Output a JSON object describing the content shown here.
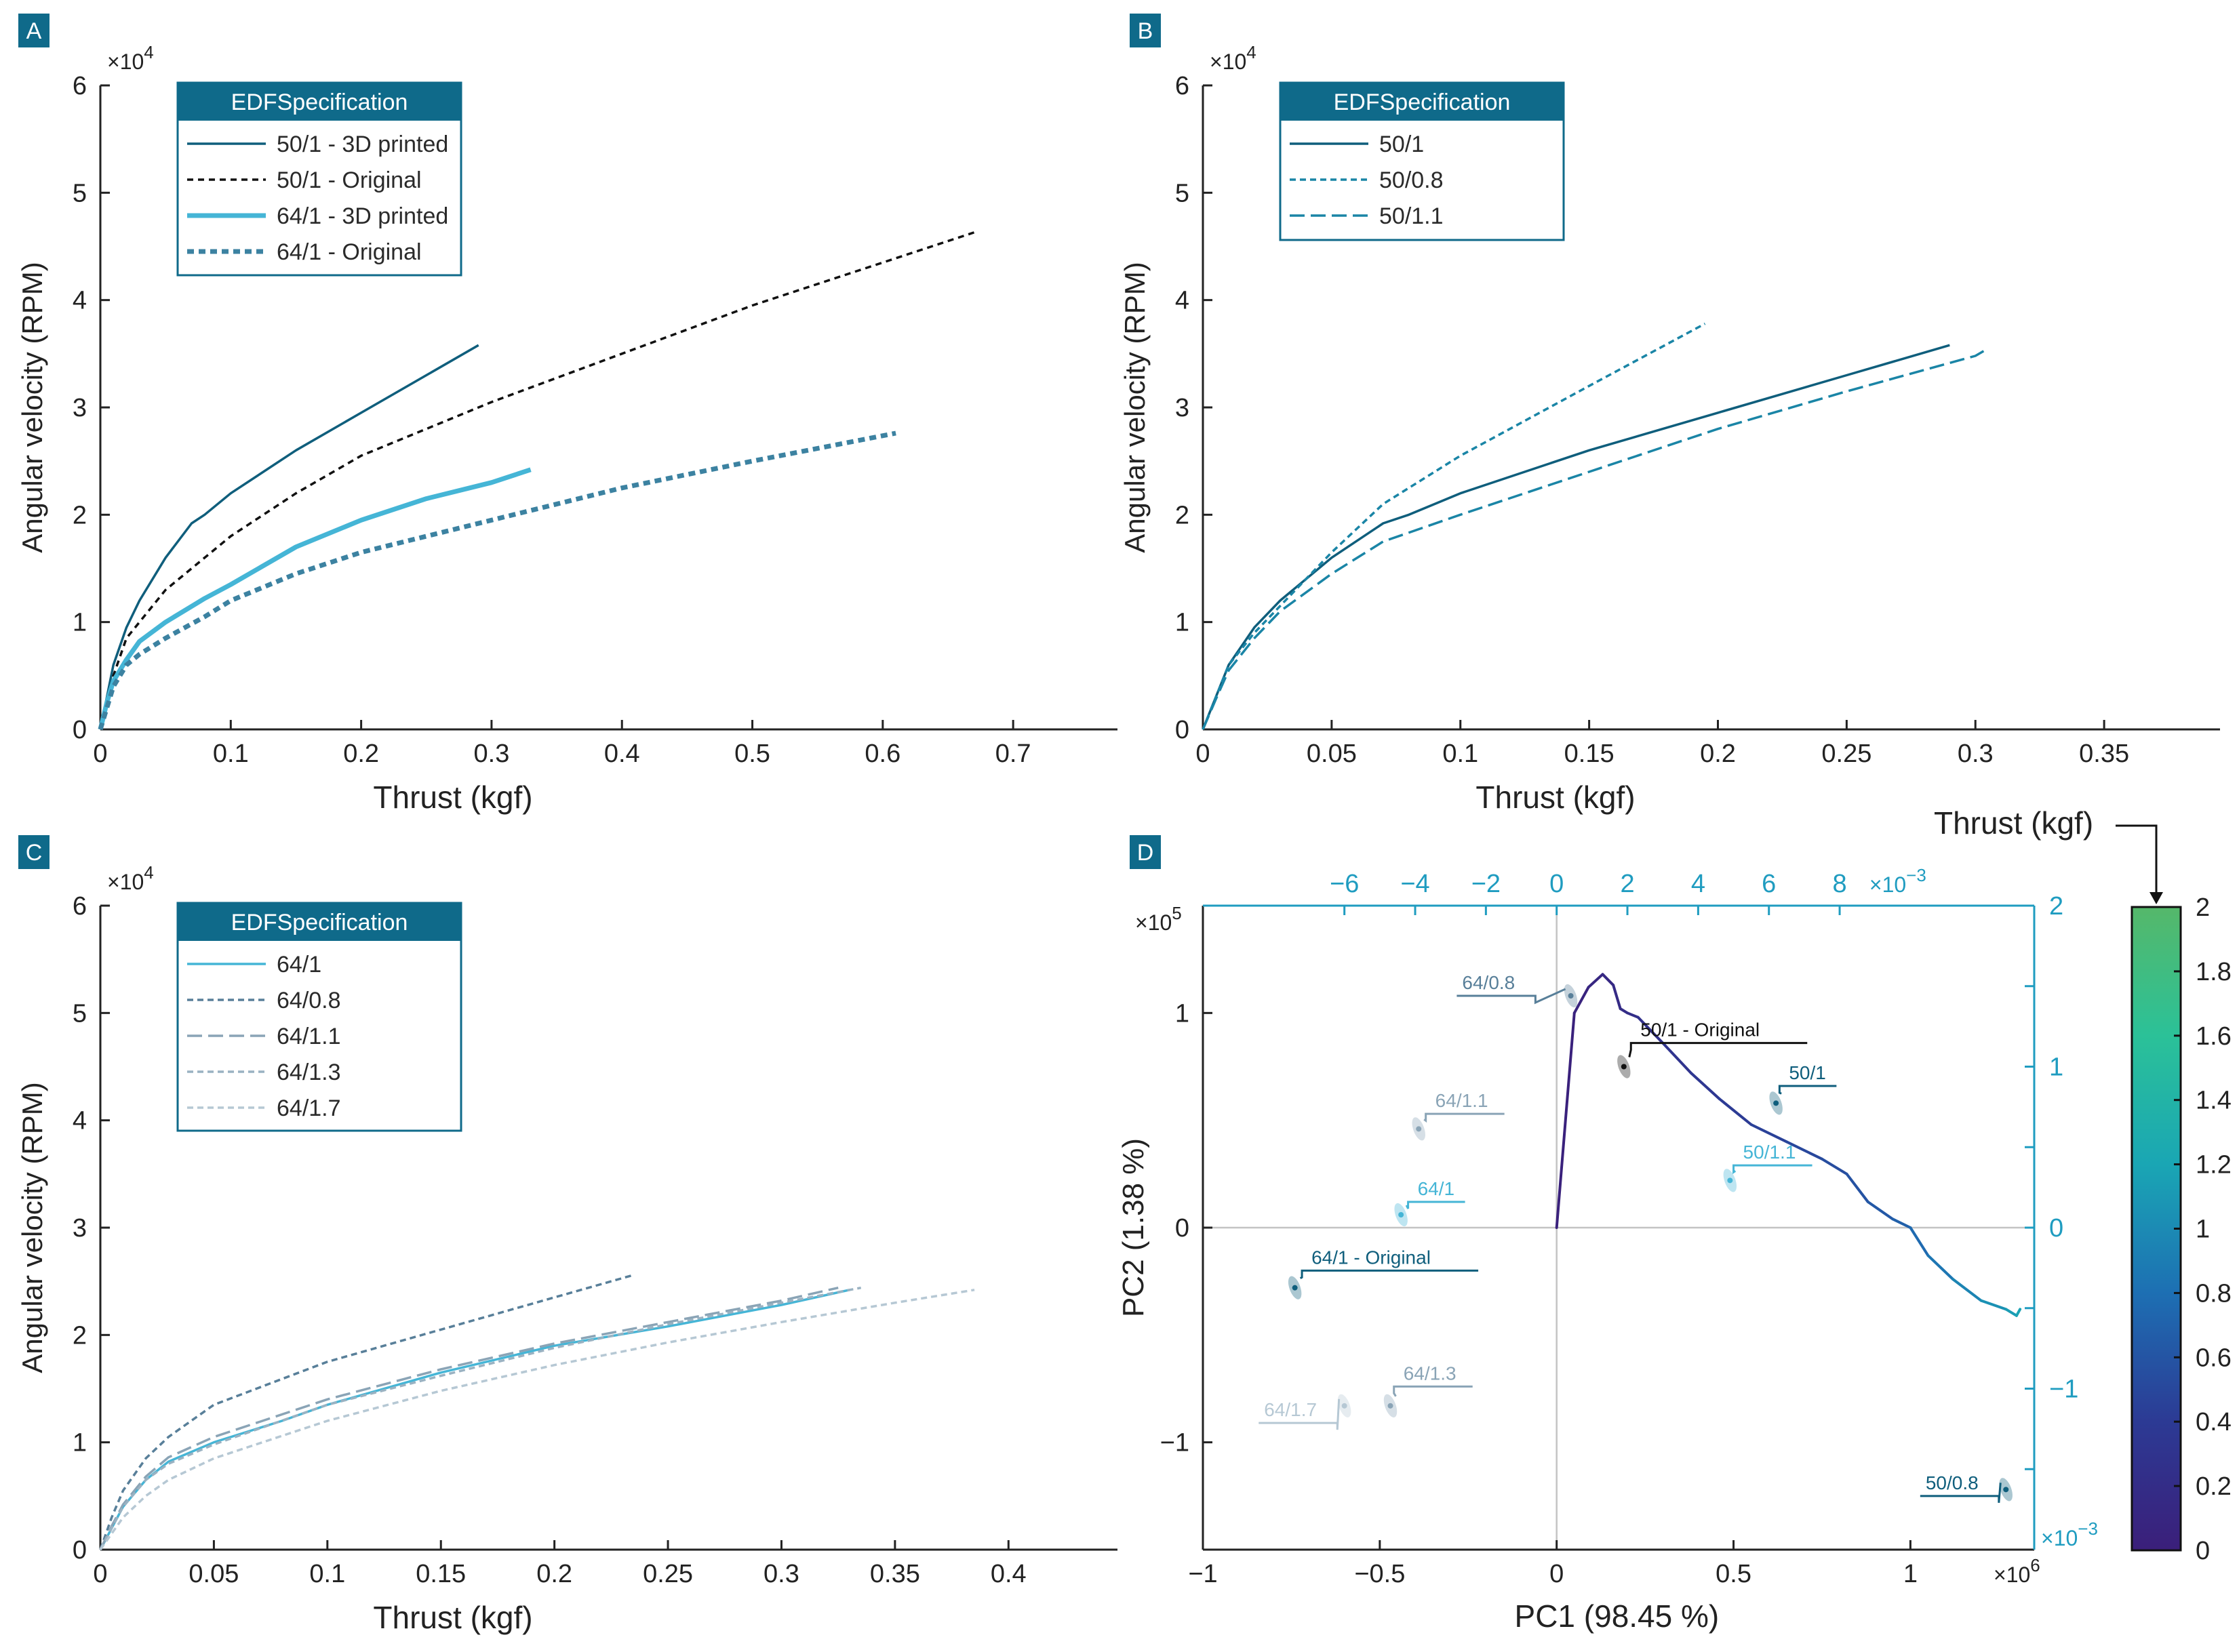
{
  "colors": {
    "navy": "#0f5e7c",
    "black": "#111111",
    "cyan": "#45b5d6",
    "teal": "#3c82a1",
    "mid": "#1a85a6",
    "panel_tag": "#0f6a8a",
    "slate": "#587f99",
    "gray1": "#8aa4b6",
    "gray2": "#9ab2c2",
    "gray3": "#b6c8d4",
    "axis": "#222222",
    "accent_axis": "#1f9cc0"
  },
  "chart_data": [
    {
      "panel": "A",
      "type": "line",
      "xlabel": "Thrust (kgf)",
      "ylabel": "Angular velocity (RPM)",
      "y_multiplier": "×10",
      "y_multiplier_exp": "4",
      "xlim": [
        0,
        0.78
      ],
      "ylim": [
        0,
        6
      ],
      "xticks": [
        0,
        0.1,
        0.2,
        0.3,
        0.4,
        0.5,
        0.6,
        0.7
      ],
      "xtick_labels": [
        "0",
        "0.1",
        "0.2",
        "0.3",
        "0.4",
        "0.5",
        "0.6",
        "0.7"
      ],
      "yticks": [
        0,
        1,
        2,
        3,
        4,
        5,
        6
      ],
      "ytick_labels": [
        "0",
        "1",
        "2",
        "3",
        "4",
        "5",
        "6"
      ],
      "legend_title": "EDFSpecification",
      "series": [
        {
          "name": "50/1 - 3D printed",
          "color": "navy",
          "dash": "",
          "width": 3.5,
          "x": [
            0,
            0.005,
            0.01,
            0.02,
            0.03,
            0.05,
            0.07,
            0.08,
            0.1,
            0.15,
            0.2,
            0.25,
            0.29
          ],
          "y": [
            0,
            0.3,
            0.6,
            0.95,
            1.2,
            1.6,
            1.92,
            2.0,
            2.2,
            2.6,
            2.95,
            3.3,
            3.58
          ]
        },
        {
          "name": "50/1 - Original",
          "color": "black",
          "dash": "9,7",
          "width": 3.5,
          "x": [
            0,
            0.01,
            0.02,
            0.05,
            0.1,
            0.15,
            0.2,
            0.3,
            0.4,
            0.5,
            0.6,
            0.67
          ],
          "y": [
            0,
            0.5,
            0.85,
            1.3,
            1.8,
            2.2,
            2.55,
            3.05,
            3.5,
            3.95,
            4.35,
            4.63
          ]
        },
        {
          "name": "64/1 - 3D printed",
          "color": "cyan",
          "dash": "",
          "width": 7,
          "x": [
            0,
            0.005,
            0.01,
            0.02,
            0.03,
            0.05,
            0.08,
            0.1,
            0.15,
            0.2,
            0.25,
            0.3,
            0.33
          ],
          "y": [
            0,
            0.25,
            0.45,
            0.65,
            0.82,
            1.0,
            1.22,
            1.35,
            1.7,
            1.95,
            2.15,
            2.3,
            2.42
          ]
        },
        {
          "name": "64/1 - Original",
          "color": "teal",
          "dash": "10,7",
          "width": 7,
          "x": [
            0,
            0.005,
            0.01,
            0.02,
            0.03,
            0.05,
            0.08,
            0.1,
            0.15,
            0.2,
            0.3,
            0.4,
            0.5,
            0.61
          ],
          "y": [
            0,
            0.2,
            0.4,
            0.6,
            0.7,
            0.85,
            1.05,
            1.2,
            1.45,
            1.65,
            1.95,
            2.25,
            2.5,
            2.76
          ]
        }
      ]
    },
    {
      "panel": "B",
      "type": "line",
      "xlabel": "Thrust (kgf)",
      "ylabel": "Angular velocity (RPM)",
      "y_multiplier": "×10",
      "y_multiplier_exp": "4",
      "xlim": [
        0,
        0.395
      ],
      "ylim": [
        0,
        6
      ],
      "xticks": [
        0,
        0.05,
        0.1,
        0.15,
        0.2,
        0.25,
        0.3,
        0.35
      ],
      "xtick_labels": [
        "0",
        "0.05",
        "0.1",
        "0.15",
        "0.2",
        "0.25",
        "0.3",
        "0.35"
      ],
      "yticks": [
        0,
        1,
        2,
        3,
        4,
        5,
        6
      ],
      "ytick_labels": [
        "0",
        "1",
        "2",
        "3",
        "4",
        "5",
        "6"
      ],
      "legend_title": "EDFSpecification",
      "series": [
        {
          "name": "50/1",
          "color": "navy",
          "dash": "",
          "width": 3.5,
          "x": [
            0,
            0.005,
            0.01,
            0.02,
            0.03,
            0.05,
            0.07,
            0.08,
            0.1,
            0.15,
            0.2,
            0.25,
            0.29
          ],
          "y": [
            0,
            0.3,
            0.6,
            0.95,
            1.2,
            1.6,
            1.92,
            2.0,
            2.2,
            2.6,
            2.95,
            3.3,
            3.58
          ]
        },
        {
          "name": "50/0.8",
          "color": "mid",
          "dash": "9,6",
          "width": 3.5,
          "x": [
            0,
            0.005,
            0.01,
            0.02,
            0.03,
            0.05,
            0.07,
            0.1,
            0.15,
            0.195
          ],
          "y": [
            0,
            0.3,
            0.6,
            0.9,
            1.15,
            1.65,
            2.1,
            2.55,
            3.2,
            3.78
          ]
        },
        {
          "name": "50/1.1",
          "color": "mid",
          "dash": "22,9",
          "width": 3.5,
          "x": [
            0,
            0.005,
            0.01,
            0.02,
            0.03,
            0.05,
            0.07,
            0.1,
            0.15,
            0.2,
            0.25,
            0.3,
            0.305
          ],
          "y": [
            0,
            0.28,
            0.55,
            0.85,
            1.1,
            1.45,
            1.75,
            2.0,
            2.4,
            2.8,
            3.15,
            3.48,
            3.55
          ]
        }
      ]
    },
    {
      "panel": "C",
      "type": "line",
      "xlabel": "Thrust (kgf)",
      "ylabel": "Angular velocity (RPM)",
      "y_multiplier": "×10",
      "y_multiplier_exp": "4",
      "xlim": [
        0,
        0.448
      ],
      "ylim": [
        0,
        6
      ],
      "xticks": [
        0,
        0.05,
        0.1,
        0.15,
        0.2,
        0.25,
        0.3,
        0.35,
        0.4
      ],
      "xtick_labels": [
        "0",
        "0.05",
        "0.1",
        "0.15",
        "0.2",
        "0.25",
        "0.3",
        "0.35",
        "0.4"
      ],
      "yticks": [
        0,
        1,
        2,
        3,
        4,
        5,
        6
      ],
      "ytick_labels": [
        "0",
        "1",
        "2",
        "3",
        "4",
        "5",
        "6"
      ],
      "legend_title": "EDFSpecification",
      "series": [
        {
          "name": "64/1",
          "color": "cyan",
          "dash": "",
          "width": 3.5,
          "x": [
            0,
            0.005,
            0.01,
            0.02,
            0.03,
            0.05,
            0.08,
            0.1,
            0.15,
            0.2,
            0.25,
            0.3,
            0.33
          ],
          "y": [
            0,
            0.2,
            0.4,
            0.65,
            0.82,
            1.0,
            1.2,
            1.35,
            1.65,
            1.9,
            2.08,
            2.28,
            2.42
          ]
        },
        {
          "name": "64/0.8",
          "color": "slate",
          "dash": "9,6",
          "width": 3.5,
          "x": [
            0,
            0.005,
            0.01,
            0.02,
            0.03,
            0.05,
            0.1,
            0.15,
            0.2,
            0.235
          ],
          "y": [
            0,
            0.3,
            0.55,
            0.85,
            1.05,
            1.35,
            1.75,
            2.05,
            2.35,
            2.56
          ]
        },
        {
          "name": "64/1.1",
          "color": "gray1",
          "dash": "22,9",
          "width": 3.5,
          "x": [
            0,
            0.005,
            0.01,
            0.02,
            0.03,
            0.05,
            0.1,
            0.15,
            0.2,
            0.25,
            0.3,
            0.325
          ],
          "y": [
            0,
            0.22,
            0.42,
            0.68,
            0.86,
            1.05,
            1.4,
            1.68,
            1.92,
            2.12,
            2.32,
            2.44
          ]
        },
        {
          "name": "64/1.3",
          "color": "gray2",
          "dash": "9,6",
          "width": 3.5,
          "x": [
            0,
            0.005,
            0.01,
            0.02,
            0.03,
            0.05,
            0.1,
            0.15,
            0.2,
            0.25,
            0.3,
            0.335
          ],
          "y": [
            0,
            0.2,
            0.4,
            0.65,
            0.8,
            0.98,
            1.35,
            1.62,
            1.88,
            2.1,
            2.3,
            2.44
          ]
        },
        {
          "name": "64/1.7",
          "color": "gray3",
          "dash": "9,6",
          "width": 3.5,
          "x": [
            0,
            0.005,
            0.01,
            0.02,
            0.03,
            0.05,
            0.1,
            0.15,
            0.2,
            0.25,
            0.3,
            0.35,
            0.385
          ],
          "y": [
            0,
            0.15,
            0.3,
            0.5,
            0.65,
            0.85,
            1.2,
            1.48,
            1.72,
            1.93,
            2.12,
            2.3,
            2.42
          ]
        }
      ]
    },
    {
      "panel": "D",
      "type": "scatter",
      "xlabel": "PC1 (98.45 %)",
      "ylabel": "PC2 (1.38 %)",
      "x_multiplier": "×10",
      "x_multiplier_exp": "6",
      "y_multiplier": "×10",
      "y_multiplier_exp": "5",
      "xlim": [
        -1,
        1.35
      ],
      "ylim": [
        -1.5,
        1.5
      ],
      "xticks": [
        -1,
        -0.5,
        0,
        0.5,
        1
      ],
      "xtick_labels": [
        "−1",
        "−0.5",
        "0",
        "0.5",
        "1"
      ],
      "yticks": [
        -1,
        0,
        1
      ],
      "ytick_labels": [
        "−1",
        "0",
        "1"
      ],
      "top_axis": {
        "multiplier": "×10",
        "multiplier_exp": "−3",
        "ticks": [
          -6,
          -4,
          -2,
          0,
          2,
          4,
          6,
          8
        ],
        "tick_labels": [
          "−6",
          "−4",
          "−2",
          "0",
          "2",
          "4",
          "6",
          "8"
        ],
        "scale_per_data_unit": 0.1
      },
      "right_axis": {
        "multiplier": "×10",
        "multiplier_exp": "−3",
        "ticks": [
          -1,
          0,
          1,
          2
        ],
        "tick_labels": [
          "−1",
          "0",
          "1",
          "2"
        ],
        "minor_ticks": [
          -1.5,
          -0.5,
          0.5,
          1.5
        ],
        "scale_per_data_unit": 0.75
      },
      "clusters": [
        {
          "name": "64/0.8",
          "color": "slate",
          "x": 0.04,
          "y": 1.08,
          "lx": -0.06,
          "ly": 1.08,
          "label_side": "left"
        },
        {
          "name": "50/1 - Original",
          "color": "black",
          "x": 0.19,
          "y": 0.75,
          "lx": 0.21,
          "ly": 0.86,
          "label_side": "right"
        },
        {
          "name": "50/1",
          "color": "navy",
          "x": 0.62,
          "y": 0.58,
          "lx": 0.63,
          "ly": 0.66,
          "label_side": "right"
        },
        {
          "name": "64/1.1",
          "color": "gray1",
          "x": -0.39,
          "y": 0.46,
          "lx": -0.37,
          "ly": 0.53,
          "label_side": "right"
        },
        {
          "name": "50/1.1",
          "color": "cyan",
          "x": 0.49,
          "y": 0.22,
          "lx": 0.5,
          "ly": 0.29,
          "label_side": "right"
        },
        {
          "name": "64/1",
          "color": "cyan",
          "x": -0.44,
          "y": 0.06,
          "lx": -0.42,
          "ly": 0.12,
          "label_side": "right"
        },
        {
          "name": "64/1 - Original",
          "color": "navy",
          "x": -0.74,
          "y": -0.28,
          "lx": -0.72,
          "ly": -0.2,
          "label_side": "right"
        },
        {
          "name": "64/1.3",
          "color": "gray1",
          "x": -0.47,
          "y": -0.83,
          "lx": -0.46,
          "ly": -0.74,
          "label_side": "right"
        },
        {
          "name": "64/1.7",
          "color": "gray3",
          "x": -0.6,
          "y": -0.83,
          "lx": -0.62,
          "ly": -0.91,
          "label_side": "left"
        },
        {
          "name": "50/0.8",
          "color": "navy",
          "x": 1.27,
          "y": -1.22,
          "lx": 1.25,
          "ly": -1.25,
          "label_side": "left"
        }
      ],
      "trajectory": {
        "color_by": "Thrust (kgf)",
        "x": [
          0,
          0.05,
          0.09,
          0.13,
          0.16,
          0.18,
          0.2,
          0.23,
          0.3,
          0.38,
          0.46,
          0.55,
          0.65,
          0.75,
          0.82,
          0.88,
          0.95,
          1.0,
          1.05,
          1.12,
          1.2,
          1.27,
          1.3,
          1.31
        ],
        "y": [
          0,
          1.0,
          1.12,
          1.18,
          1.13,
          1.02,
          1.0,
          0.98,
          0.86,
          0.72,
          0.6,
          0.48,
          0.4,
          0.32,
          0.25,
          0.12,
          0.04,
          0.0,
          -0.13,
          -0.24,
          -0.34,
          -0.38,
          -0.41,
          -0.38
        ],
        "thrust": [
          0,
          0.05,
          0.08,
          0.12,
          0.15,
          0.18,
          0.2,
          0.23,
          0.28,
          0.33,
          0.38,
          0.43,
          0.48,
          0.52,
          0.56,
          0.6,
          0.66,
          0.72,
          0.8,
          0.9,
          1.0,
          1.1,
          1.15,
          1.2
        ]
      },
      "colorbar": {
        "title": "Thrust (kgf)",
        "ticks": [
          0,
          0.2,
          0.4,
          0.6,
          0.8,
          1,
          1.2,
          1.4,
          1.6,
          1.8,
          2
        ],
        "tick_labels": [
          "0",
          "0.2",
          "0.4",
          "0.6",
          "0.8",
          "1",
          "1.2",
          "1.4",
          "1.6",
          "1.8",
          "2"
        ],
        "stops": [
          "#3b1f7a",
          "#2c3a94",
          "#1d6fb3",
          "#1aa6b4",
          "#2bc198",
          "#55b86a"
        ]
      }
    }
  ]
}
